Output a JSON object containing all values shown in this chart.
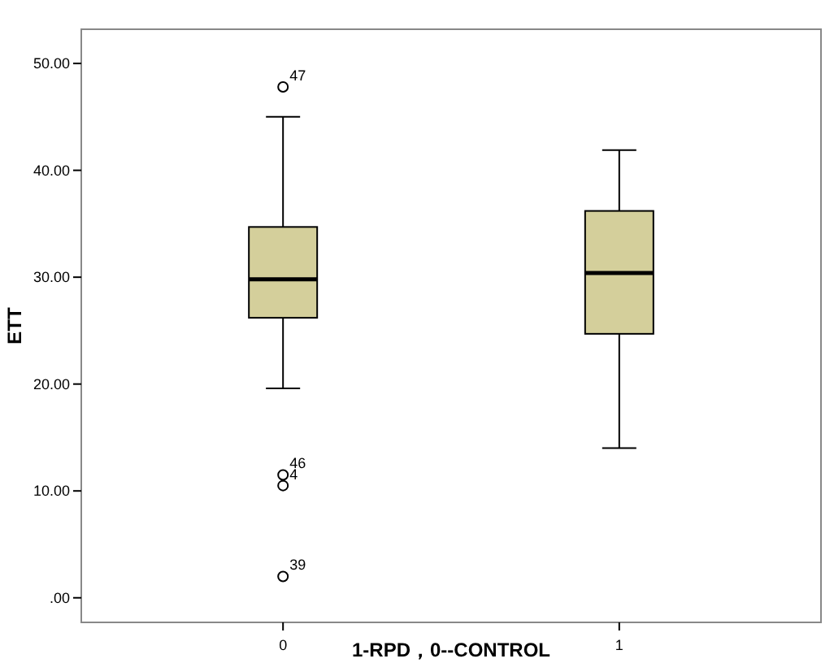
{
  "chart_data": {
    "type": "box",
    "xlabel": "1-RPD，0--CONTROL",
    "ylabel": "ETT",
    "categories": [
      "0",
      "1"
    ],
    "boxes": [
      {
        "low": 19.6,
        "q1": 26.2,
        "median": 29.8,
        "q3": 34.7,
        "high": 45.0,
        "outliers": [
          47.8,
          11.5,
          10.5,
          2.0
        ]
      },
      {
        "low": 14.0,
        "q1": 24.7,
        "median": 30.4,
        "q3": 36.2,
        "high": 41.9
      }
    ],
    "color": "#d4cf9b",
    "ylim": [
      -2.3,
      53.2
    ],
    "yticks": [
      {
        "value": 0,
        "label": ".00"
      },
      {
        "value": 10,
        "label": "10.00"
      },
      {
        "value": 20,
        "label": "20.00"
      },
      {
        "value": 30,
        "label": "30.00"
      },
      {
        "value": 40,
        "label": "40.00"
      },
      {
        "value": 50,
        "label": "50.00"
      }
    ],
    "grid": false,
    "annotations": [
      "47",
      "46",
      "4",
      "39"
    ]
  }
}
